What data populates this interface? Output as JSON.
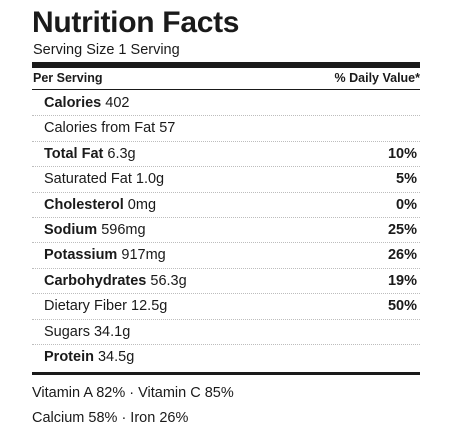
{
  "header": {
    "title": "Nutrition Facts",
    "serving_size": "Serving Size 1 Serving"
  },
  "columns": {
    "per_serving": "Per Serving",
    "daily_value": "% Daily Value*"
  },
  "nutrients": [
    {
      "name": "Calories",
      "amount": "402",
      "bold": true,
      "dv": ""
    },
    {
      "name": "Calories from Fat",
      "amount": "57",
      "bold": false,
      "dv": ""
    },
    {
      "name": "Total Fat",
      "amount": "6.3g",
      "bold": true,
      "dv": "10%"
    },
    {
      "name": "Saturated Fat",
      "amount": "1.0g",
      "bold": false,
      "dv": "5%"
    },
    {
      "name": "Cholesterol",
      "amount": "0mg",
      "bold": true,
      "dv": "0%"
    },
    {
      "name": "Sodium",
      "amount": "596mg",
      "bold": true,
      "dv": "25%"
    },
    {
      "name": "Potassium",
      "amount": "917mg",
      "bold": true,
      "dv": "26%"
    },
    {
      "name": "Carbohydrates",
      "amount": "56.3g",
      "bold": true,
      "dv": "19%"
    },
    {
      "name": "Dietary Fiber",
      "amount": "12.5g",
      "bold": false,
      "dv": "50%"
    },
    {
      "name": "Sugars",
      "amount": "34.1g",
      "bold": false,
      "dv": ""
    },
    {
      "name": "Protein",
      "amount": "34.5g",
      "bold": true,
      "dv": ""
    }
  ],
  "vitamins": {
    "line1": "Vitamin A 82% · Vitamin C 85%",
    "line2": "Calcium 58% · Iron 26%"
  }
}
